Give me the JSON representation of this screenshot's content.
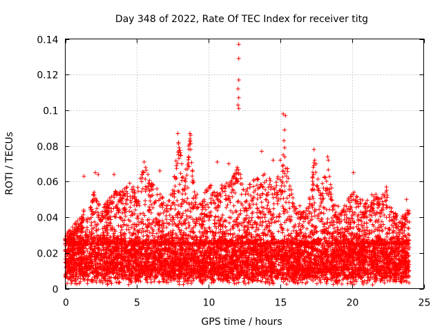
{
  "chart_data": {
    "type": "scatter",
    "title": "Day 348 of 2022, Rate Of TEC Index for receiver titg",
    "xlabel": "GPS time / hours",
    "ylabel": "ROTI / TECUs",
    "xlim": [
      0,
      25
    ],
    "ylim": [
      0,
      0.14
    ],
    "xticks": [
      0,
      5,
      10,
      15,
      20,
      25
    ],
    "yticks": [
      0,
      0.02,
      0.04,
      0.06,
      0.08,
      0.1,
      0.12,
      0.14
    ],
    "xtick_labels": [
      "0",
      "5",
      "10",
      "15",
      "20",
      "25"
    ],
    "ytick_labels": [
      "0",
      "0.02",
      "0.04",
      "0.06",
      "0.08",
      "0.1",
      "0.12",
      "0.14"
    ],
    "grid": true,
    "marker": "+",
    "color": "#ff0000",
    "data_extent_x": [
      0,
      24
    ],
    "series": [
      {
        "name": "ROTI",
        "bulk_band": [
          0.005,
          0.025
        ],
        "envelope": [
          [
            0.0,
            0.03
          ],
          [
            0.5,
            0.035
          ],
          [
            1.0,
            0.04
          ],
          [
            1.3,
            0.045
          ],
          [
            1.6,
            0.04
          ],
          [
            2.0,
            0.055
          ],
          [
            2.5,
            0.045
          ],
          [
            3.0,
            0.05
          ],
          [
            3.5,
            0.055
          ],
          [
            4.0,
            0.055
          ],
          [
            4.5,
            0.06
          ],
          [
            5.0,
            0.055
          ],
          [
            5.5,
            0.07
          ],
          [
            6.0,
            0.06
          ],
          [
            6.5,
            0.055
          ],
          [
            7.0,
            0.05
          ],
          [
            7.5,
            0.055
          ],
          [
            7.9,
            0.085
          ],
          [
            8.3,
            0.06
          ],
          [
            8.7,
            0.086
          ],
          [
            9.0,
            0.055
          ],
          [
            9.5,
            0.05
          ],
          [
            10.0,
            0.06
          ],
          [
            10.5,
            0.055
          ],
          [
            11.0,
            0.06
          ],
          [
            11.5,
            0.06
          ],
          [
            12.1,
            0.07
          ],
          [
            12.5,
            0.055
          ],
          [
            13.0,
            0.06
          ],
          [
            13.5,
            0.065
          ],
          [
            14.0,
            0.065
          ],
          [
            14.5,
            0.06
          ],
          [
            15.0,
            0.065
          ],
          [
            15.3,
            0.075
          ],
          [
            15.7,
            0.06
          ],
          [
            16.0,
            0.05
          ],
          [
            16.5,
            0.045
          ],
          [
            17.0,
            0.05
          ],
          [
            17.4,
            0.075
          ],
          [
            17.8,
            0.055
          ],
          [
            18.3,
            0.07
          ],
          [
            18.7,
            0.05
          ],
          [
            19.2,
            0.045
          ],
          [
            19.7,
            0.05
          ],
          [
            20.1,
            0.055
          ],
          [
            20.5,
            0.05
          ],
          [
            21.0,
            0.05
          ],
          [
            21.5,
            0.055
          ],
          [
            22.0,
            0.05
          ],
          [
            22.4,
            0.058
          ],
          [
            22.8,
            0.045
          ],
          [
            23.3,
            0.04
          ],
          [
            24.0,
            0.045
          ]
        ],
        "outliers": [
          {
            "x": 12.1,
            "y": 0.137
          },
          {
            "x": 12.1,
            "y": 0.129
          },
          {
            "x": 12.1,
            "y": 0.117
          },
          {
            "x": 12.05,
            "y": 0.112
          },
          {
            "x": 12.1,
            "y": 0.107
          },
          {
            "x": 12.05,
            "y": 0.103
          },
          {
            "x": 12.1,
            "y": 0.101
          },
          {
            "x": 12.0,
            "y": 0.068
          },
          {
            "x": 15.2,
            "y": 0.098
          },
          {
            "x": 15.35,
            "y": 0.097
          },
          {
            "x": 15.3,
            "y": 0.089
          },
          {
            "x": 15.25,
            "y": 0.083
          },
          {
            "x": 15.3,
            "y": 0.079
          },
          {
            "x": 15.2,
            "y": 0.075
          },
          {
            "x": 7.85,
            "y": 0.087
          },
          {
            "x": 7.9,
            "y": 0.082
          },
          {
            "x": 7.95,
            "y": 0.079
          },
          {
            "x": 8.7,
            "y": 0.087
          },
          {
            "x": 8.75,
            "y": 0.086
          },
          {
            "x": 8.7,
            "y": 0.084
          },
          {
            "x": 8.65,
            "y": 0.081
          },
          {
            "x": 8.75,
            "y": 0.078
          },
          {
            "x": 8.6,
            "y": 0.074
          },
          {
            "x": 17.35,
            "y": 0.078
          },
          {
            "x": 17.4,
            "y": 0.072
          },
          {
            "x": 17.3,
            "y": 0.068
          },
          {
            "x": 18.3,
            "y": 0.074
          },
          {
            "x": 18.35,
            "y": 0.072
          },
          {
            "x": 10.6,
            "y": 0.071
          },
          {
            "x": 5.5,
            "y": 0.071
          },
          {
            "x": 5.6,
            "y": 0.068
          },
          {
            "x": 13.7,
            "y": 0.077
          },
          {
            "x": 14.5,
            "y": 0.072
          },
          {
            "x": 15.0,
            "y": 0.072
          },
          {
            "x": 11.4,
            "y": 0.07
          },
          {
            "x": 20.1,
            "y": 0.065
          },
          {
            "x": 1.3,
            "y": 0.063
          },
          {
            "x": 2.1,
            "y": 0.065
          },
          {
            "x": 2.3,
            "y": 0.064
          },
          {
            "x": 3.4,
            "y": 0.064
          },
          {
            "x": 6.6,
            "y": 0.066
          },
          {
            "x": 22.4,
            "y": 0.057
          },
          {
            "x": 23.8,
            "y": 0.05
          }
        ]
      }
    ]
  }
}
